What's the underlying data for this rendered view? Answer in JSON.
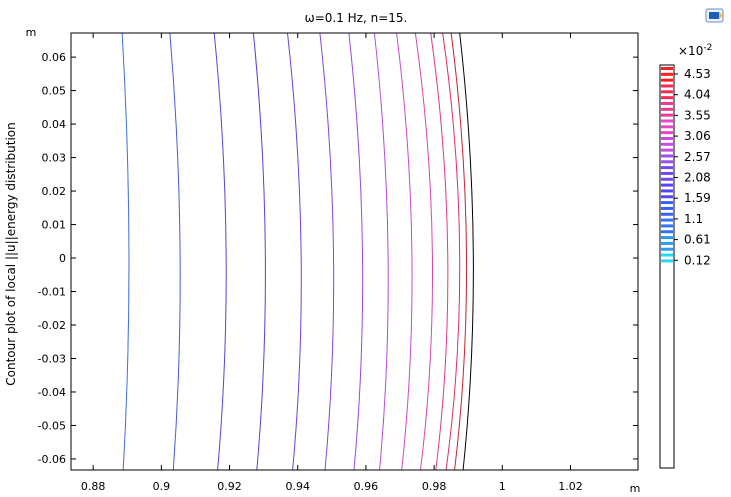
{
  "chart_data": {
    "type": "contour",
    "title": "ω=0.1 Hz, n=15.",
    "ylabel": "Contour plot of local ||u||energy distribution",
    "x_unit": "m",
    "y_unit": "m",
    "xlim": [
      0.8735,
      1.0398
    ],
    "ylim": [
      -0.0633,
      0.0672
    ],
    "x_ticks": [
      0.88,
      0.9,
      0.92,
      0.94,
      0.96,
      0.98,
      1,
      1.02
    ],
    "x_tick_labels": [
      "0.88",
      "0.9",
      "0.92",
      "0.94",
      "0.96",
      "0.98",
      "1",
      "1.02"
    ],
    "y_ticks": [
      0.06,
      0.05,
      0.04,
      0.03,
      0.02,
      0.01,
      0,
      -0.01,
      -0.02,
      -0.03,
      -0.04,
      -0.05,
      -0.06
    ],
    "y_tick_labels": [
      "0.06",
      "0.05",
      "0.04",
      "0.03",
      "0.02",
      "0.01",
      "0",
      "-0.01",
      "-0.02",
      "-0.03",
      "-0.04",
      "-0.05",
      "-0.06"
    ],
    "colorbar": {
      "multiplier": "×10",
      "exponent": "-2",
      "labels": [
        "4.53",
        "4.04",
        "3.55",
        "3.06",
        "2.57",
        "2.08",
        "1.59",
        "1.1",
        "0.61",
        "0.12"
      ],
      "colors_top_to_bottom": [
        "#ff1f1f",
        "#f82a55",
        "#ef3a94",
        "#e845cf",
        "#c84be8",
        "#9c4ef2",
        "#7447f5",
        "#5446f6",
        "#3b5ef8",
        "#3274f8",
        "#2c9bf8",
        "#25d8f3"
      ]
    },
    "contours": [
      {
        "level": 0.12,
        "color": "#4270dd",
        "x_top": 0.8885,
        "x_mid": 0.8905,
        "x_bottom": 0.8888
      },
      {
        "level": 0.56,
        "color": "#4b5bd8",
        "x_top": 0.9025,
        "x_mid": 0.9055,
        "x_bottom": 0.9035
      },
      {
        "level": 1.0,
        "color": "#4d48d7",
        "x_top": 0.9155,
        "x_mid": 0.919,
        "x_bottom": 0.9165
      },
      {
        "level": 1.45,
        "color": "#5840d8",
        "x_top": 0.927,
        "x_mid": 0.9305,
        "x_bottom": 0.928
      },
      {
        "level": 1.89,
        "color": "#6d3fdc",
        "x_top": 0.937,
        "x_mid": 0.941,
        "x_bottom": 0.9385
      },
      {
        "level": 2.33,
        "color": "#8343df",
        "x_top": 0.9465,
        "x_mid": 0.9505,
        "x_bottom": 0.948
      },
      {
        "level": 2.77,
        "color": "#9a47e0",
        "x_top": 0.955,
        "x_mid": 0.959,
        "x_bottom": 0.9565
      },
      {
        "level": 3.21,
        "color": "#b14ad9",
        "x_top": 0.9625,
        "x_mid": 0.9665,
        "x_bottom": 0.964
      },
      {
        "level": 3.65,
        "color": "#c74bc9",
        "x_top": 0.969,
        "x_mid": 0.9735,
        "x_bottom": 0.9705
      },
      {
        "level": 4.1,
        "color": "#d449aa",
        "x_top": 0.9745,
        "x_mid": 0.9795,
        "x_bottom": 0.976
      },
      {
        "level": 4.3,
        "color": "#dc3c86",
        "x_top": 0.979,
        "x_mid": 0.984,
        "x_bottom": 0.9805
      },
      {
        "level": 4.45,
        "color": "#dd2f5f",
        "x_top": 0.9825,
        "x_mid": 0.9875,
        "x_bottom": 0.9835
      },
      {
        "level": 4.53,
        "color": "#c0282f",
        "x_top": 0.985,
        "x_mid": 0.9895,
        "x_bottom": 0.986
      },
      {
        "level": 4.6,
        "color": "#000000",
        "x_top": 0.9875,
        "x_mid": 0.9915,
        "x_bottom": 0.9885
      }
    ]
  },
  "toolbar": {
    "icon": "render-icon"
  }
}
